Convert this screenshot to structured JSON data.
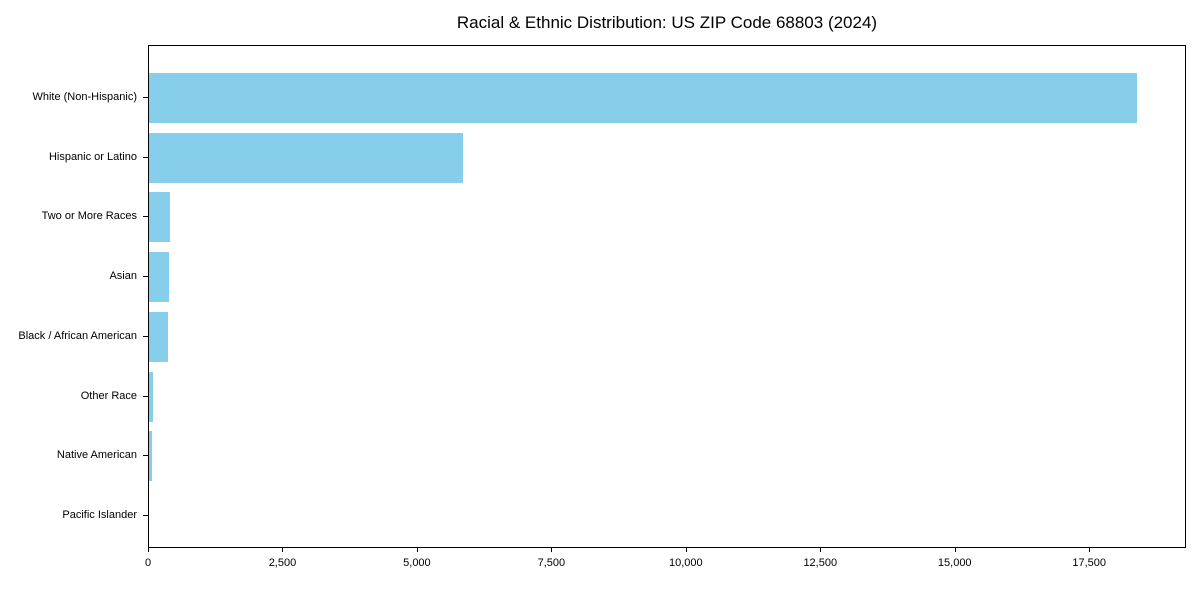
{
  "figure": {
    "background_color": "#ffffff",
    "text_color": "#000000",
    "spine_color": "#000000"
  },
  "chart_data": {
    "type": "bar",
    "orientation": "horizontal",
    "title": "Racial & Ethnic Distribution: US ZIP Code 68803 (2024)",
    "xlabel": "",
    "ylabel": "",
    "categories": [
      "White (Non-Hispanic)",
      "Hispanic or Latino",
      "Two or More Races",
      "Asian",
      "Black / African American",
      "Other Race",
      "Native American",
      "Pacific Islander"
    ],
    "values": [
      18375,
      5830,
      390,
      370,
      350,
      80,
      60,
      0
    ],
    "bar_color": "#87CEEB",
    "xlim": [
      0,
      19300
    ],
    "x_ticks": [
      0,
      2500,
      5000,
      7500,
      10000,
      12500,
      15000,
      17500
    ],
    "x_tick_labels": [
      "0",
      "2,500",
      "5,000",
      "7,500",
      "10,000",
      "12,500",
      "15,000",
      "17,500"
    ],
    "grid": false,
    "legend": null
  }
}
